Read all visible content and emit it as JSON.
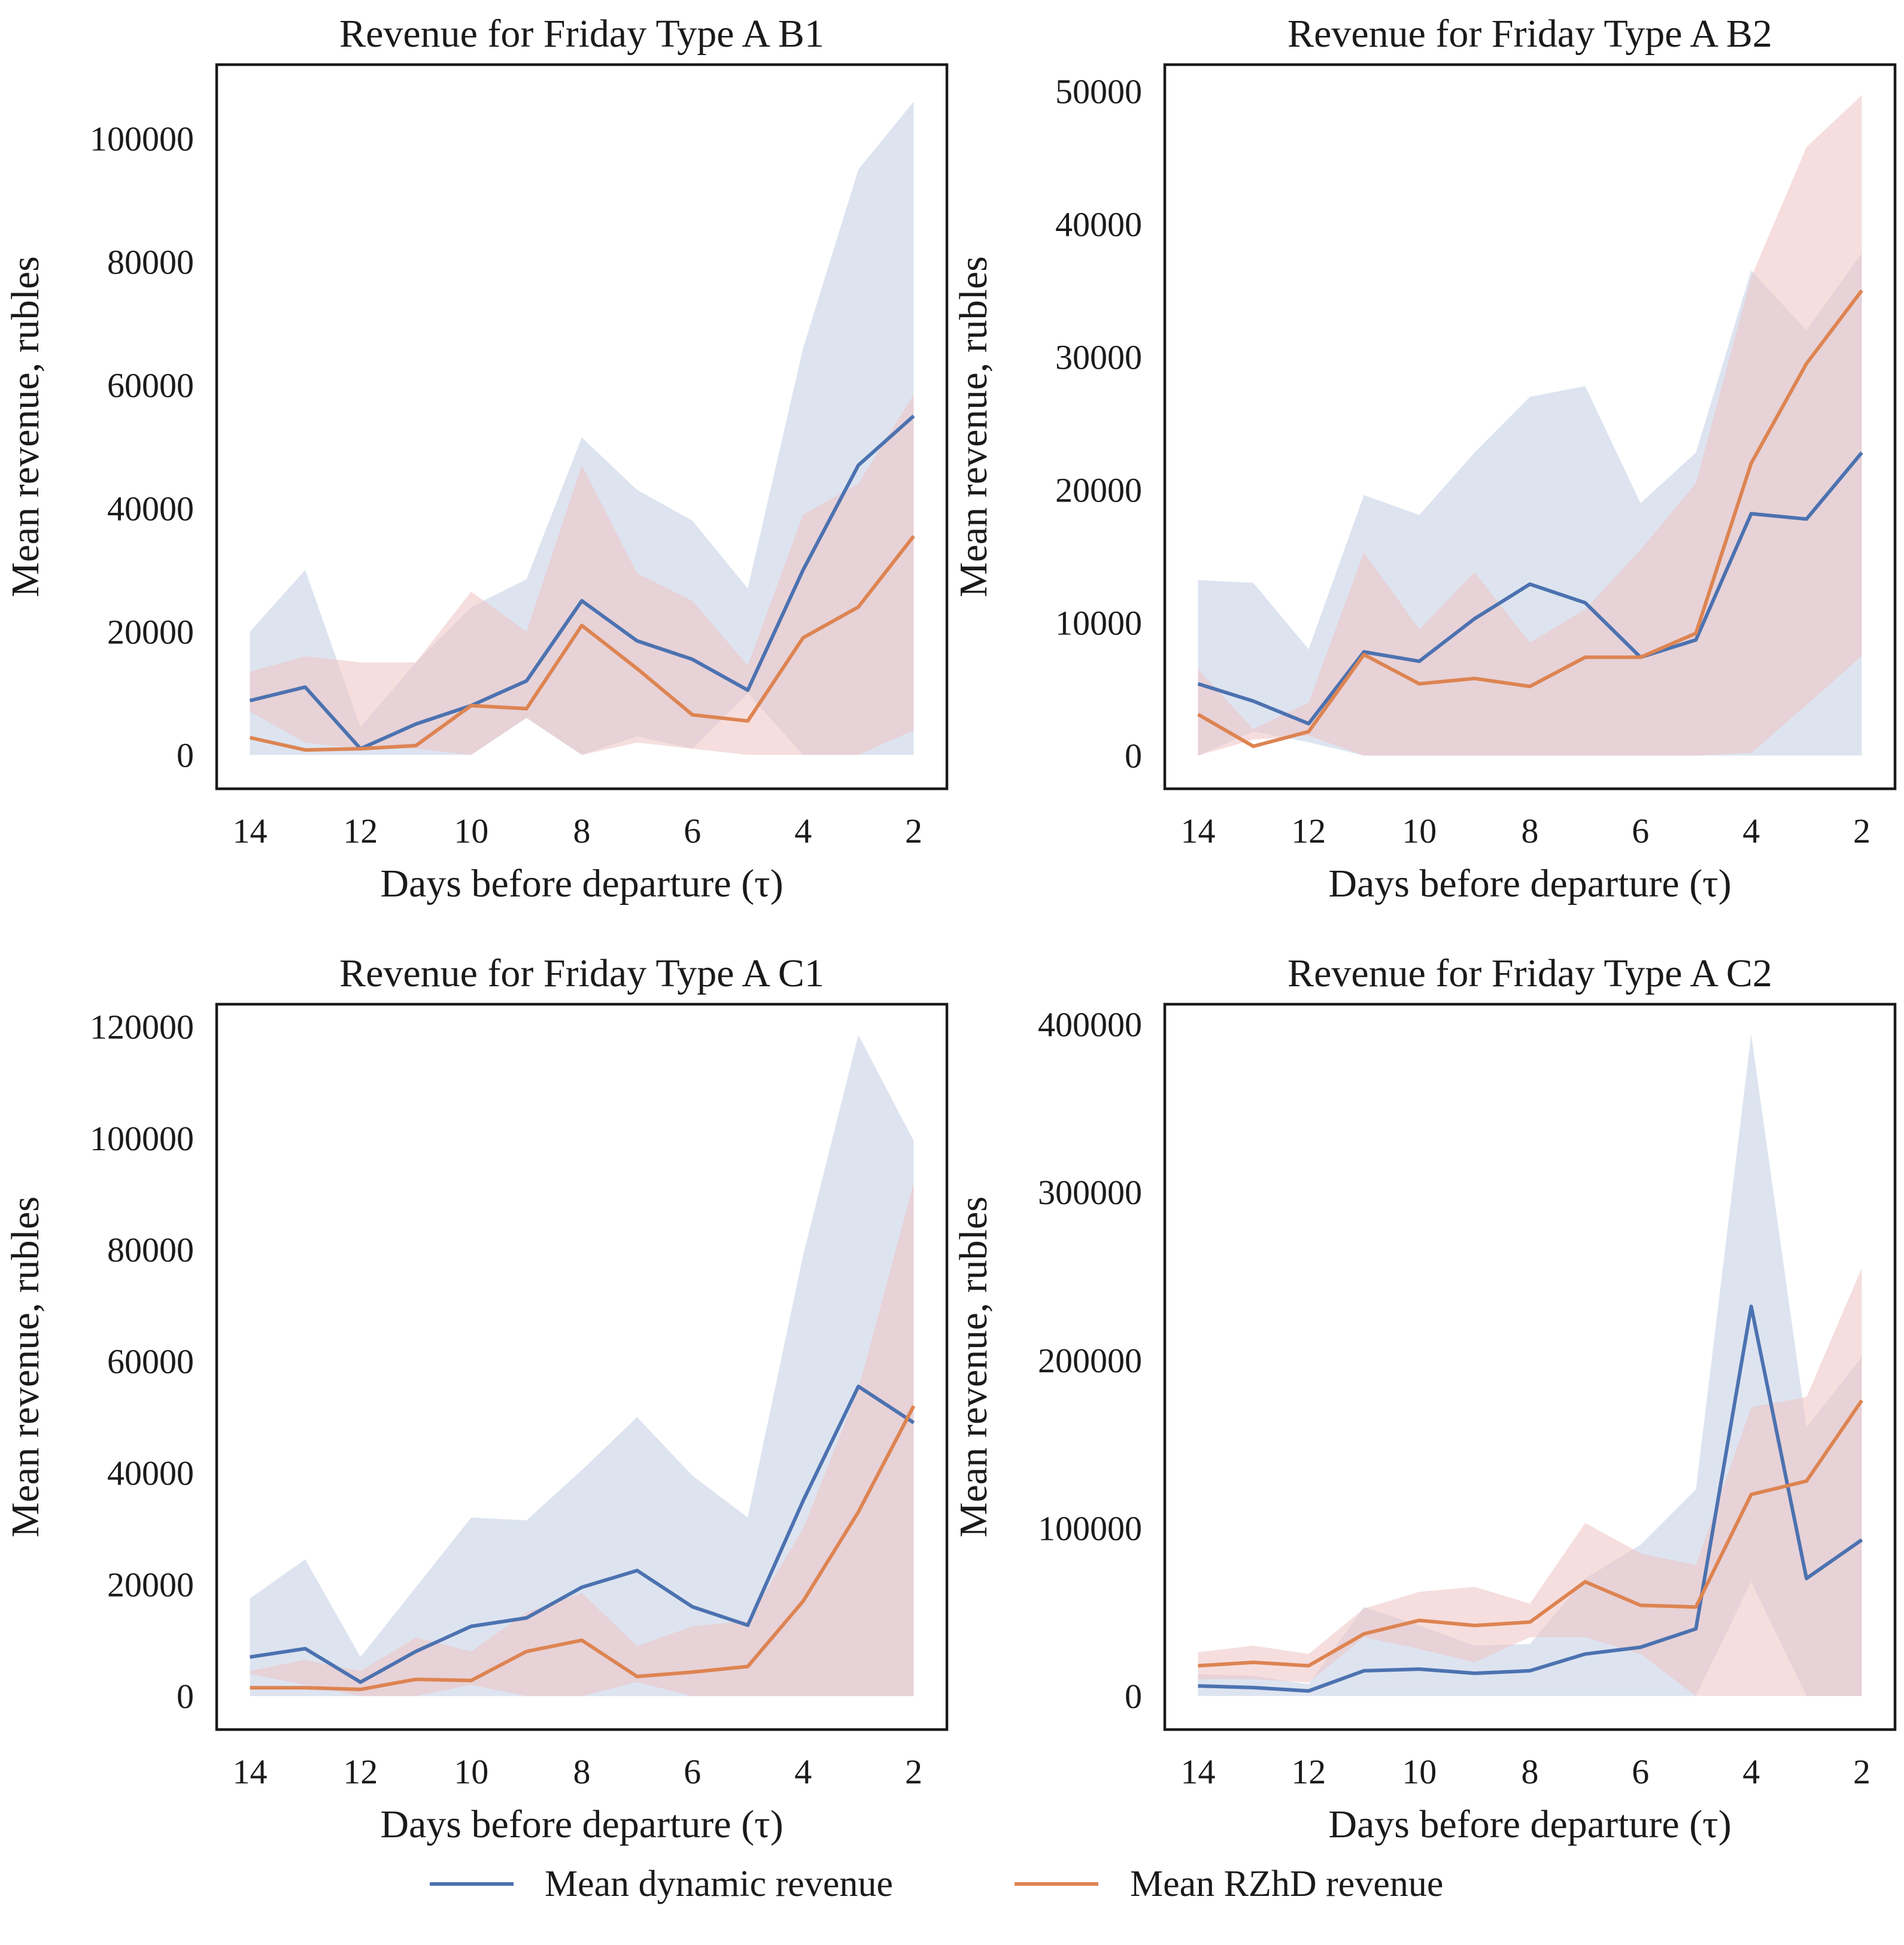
{
  "colors": {
    "dynamic": "#4c72b0",
    "rzhd": "#dd8452",
    "dynamic_band": "#c8d3e6",
    "rzhd_band": "#efc3c3"
  },
  "legend": {
    "dynamic_label": "Mean dynamic revenue",
    "rzhd_label": "Mean RZhD revenue"
  },
  "chart_data": [
    {
      "type": "line",
      "title": "Revenue for Friday Type A B1",
      "xlabel": "Days before departure (τ)",
      "ylabel": "Mean revenue, rubles",
      "x": [
        14,
        13,
        12,
        11,
        10,
        9,
        8,
        7,
        6,
        5,
        4,
        3,
        2
      ],
      "xlim": [
        14.6,
        1.4
      ],
      "ylim": [
        -5500,
        112000
      ],
      "xticks": [
        14,
        12,
        10,
        8,
        6,
        4,
        2
      ],
      "yticks": [
        0,
        20000,
        40000,
        60000,
        80000,
        100000
      ],
      "grid": false,
      "legend": "bottom-center",
      "series": [
        {
          "name": "Mean dynamic revenue",
          "values": [
            8800,
            11000,
            1000,
            5000,
            8000,
            12000,
            25000,
            18500,
            15500,
            10500,
            30000,
            47000,
            55000
          ],
          "band_low": [
            0,
            0,
            0,
            0,
            0,
            6000,
            0,
            3000,
            1000,
            10000,
            0,
            0,
            0
          ],
          "band_high": [
            20000,
            30000,
            4500,
            15000,
            24000,
            28500,
            51500,
            43000,
            38000,
            27000,
            66000,
            95000,
            106000
          ]
        },
        {
          "name": "Mean RZhD revenue",
          "values": [
            2800,
            800,
            1000,
            1500,
            8000,
            7500,
            21000,
            14000,
            6500,
            5500,
            19000,
            24000,
            35500
          ],
          "band_low": [
            7000,
            2000,
            1000,
            1000,
            0,
            6000,
            0,
            2000,
            1000,
            0,
            0,
            0,
            4000
          ],
          "band_high": [
            13500,
            16000,
            15000,
            15000,
            26500,
            20000,
            47000,
            29500,
            25000,
            14500,
            39000,
            44000,
            58500
          ]
        }
      ]
    },
    {
      "type": "line",
      "title": "Revenue for Friday Type A B2",
      "xlabel": "Days before departure (τ)",
      "ylabel": "Mean revenue, rubles",
      "x": [
        14,
        13,
        12,
        11,
        10,
        9,
        8,
        7,
        6,
        5,
        4,
        3,
        2
      ],
      "xlim": [
        14.6,
        1.4
      ],
      "ylim": [
        -2500,
        52000
      ],
      "xticks": [
        14,
        12,
        10,
        8,
        6,
        4,
        2
      ],
      "yticks": [
        0,
        10000,
        20000,
        30000,
        40000,
        50000
      ],
      "grid": false,
      "legend": "bottom-center",
      "series": [
        {
          "name": "Mean dynamic revenue",
          "values": [
            5400,
            4100,
            2400,
            7800,
            7100,
            10300,
            12900,
            11500,
            7400,
            8700,
            18200,
            17800,
            22800
          ],
          "band_low": [
            0,
            1800,
            1000,
            0,
            0,
            0,
            0,
            0,
            0,
            0,
            0,
            0,
            0
          ],
          "band_high": [
            13200,
            13000,
            8000,
            19600,
            18100,
            22800,
            27000,
            27800,
            19000,
            22800,
            36500,
            32000,
            37800
          ]
        },
        {
          "name": "Mean RZhD revenue",
          "values": [
            3100,
            700,
            1800,
            7600,
            5400,
            5800,
            5200,
            7400,
            7400,
            9200,
            22000,
            29500,
            35000
          ],
          "band_low": [
            0,
            1200,
            1500,
            0,
            0,
            0,
            0,
            0,
            0,
            0,
            200,
            3800,
            7500
          ],
          "band_high": [
            6500,
            2000,
            4000,
            15300,
            9500,
            13800,
            8500,
            11000,
            15500,
            20500,
            36000,
            45800,
            49700
          ]
        }
      ]
    },
    {
      "type": "line",
      "title": "Revenue for Friday Type A C1",
      "xlabel": "Days before departure (τ)",
      "ylabel": "Mean revenue, rubles",
      "x": [
        14,
        13,
        12,
        11,
        10,
        9,
        8,
        7,
        6,
        5,
        4,
        3,
        2
      ],
      "xlim": [
        14.6,
        1.4
      ],
      "ylim": [
        -6000,
        124000
      ],
      "xticks": [
        14,
        12,
        10,
        8,
        6,
        4,
        2
      ],
      "yticks": [
        0,
        20000,
        40000,
        60000,
        80000,
        100000,
        120000
      ],
      "grid": false,
      "legend": "bottom-center",
      "series": [
        {
          "name": "Mean dynamic revenue",
          "values": [
            7000,
            8500,
            2500,
            8000,
            12500,
            14000,
            19500,
            22500,
            16000,
            12700,
            35000,
            55500,
            49000
          ],
          "band_low": [
            0,
            0,
            0,
            0,
            0,
            0,
            0,
            0,
            0,
            0,
            0,
            0,
            0
          ],
          "band_high": [
            17500,
            24500,
            7000,
            19500,
            32000,
            31500,
            40500,
            50000,
            39500,
            32000,
            79000,
            118500,
            99500
          ]
        },
        {
          "name": "Mean RZhD revenue",
          "values": [
            1500,
            1500,
            1200,
            3000,
            2800,
            8000,
            10000,
            3500,
            4300,
            5300,
            17000,
            33000,
            52000
          ],
          "band_low": [
            4000,
            2000,
            0,
            0,
            2000,
            0,
            0,
            2500,
            0,
            0,
            0,
            0,
            0
          ],
          "band_high": [
            4500,
            6500,
            4500,
            10500,
            8000,
            15000,
            18500,
            9000,
            12500,
            13500,
            30000,
            55000,
            92000
          ]
        }
      ]
    },
    {
      "type": "line",
      "title": "Revenue for Friday Type A C2",
      "xlabel": "Days before departure (τ)",
      "ylabel": "Mean revenue, rubles",
      "x": [
        14,
        13,
        12,
        11,
        10,
        9,
        8,
        7,
        6,
        5,
        4,
        3,
        2
      ],
      "xlim": [
        14.6,
        1.4
      ],
      "ylim": [
        -20000,
        412000
      ],
      "xticks": [
        14,
        12,
        10,
        8,
        6,
        4,
        2
      ],
      "yticks": [
        0,
        100000,
        200000,
        300000,
        400000
      ],
      "grid": false,
      "legend": "bottom-center",
      "series": [
        {
          "name": "Mean dynamic revenue",
          "values": [
            6000,
            5000,
            3000,
            15000,
            16000,
            13500,
            15000,
            25000,
            29000,
            40000,
            232000,
            70000,
            93000
          ],
          "band_low": [
            0,
            0,
            0,
            0,
            0,
            0,
            0,
            0,
            0,
            0,
            68000,
            0,
            0
          ],
          "band_high": [
            13000,
            12000,
            7000,
            53000,
            42000,
            30000,
            31000,
            70000,
            90000,
            123000,
            394000,
            160000,
            202000
          ]
        },
        {
          "name": "Mean RZhD revenue",
          "values": [
            18000,
            20000,
            18000,
            37000,
            45000,
            42000,
            44000,
            68000,
            54000,
            53000,
            120000,
            128000,
            176000
          ],
          "band_low": [
            10000,
            10000,
            8000,
            35000,
            28000,
            20000,
            35000,
            35000,
            25000,
            0,
            0,
            0,
            0
          ],
          "band_high": [
            26000,
            30000,
            25000,
            52000,
            62000,
            65000,
            55000,
            103000,
            85000,
            78000,
            172000,
            178000,
            255000
          ]
        }
      ]
    }
  ]
}
